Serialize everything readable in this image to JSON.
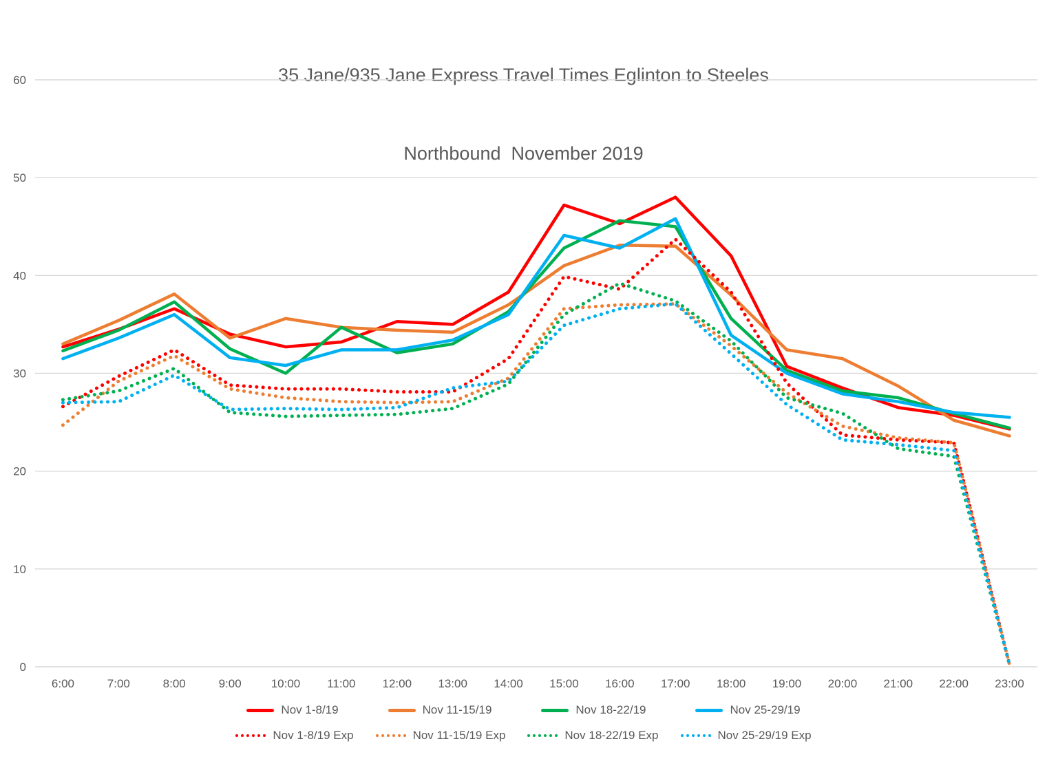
{
  "title": {
    "line1": "35 Jane/935 Jane Express Travel Times Eglinton to Steeles",
    "line2": "Northbound  November 2019"
  },
  "colors": {
    "red": "#FF0000",
    "orange": "#ED7D31",
    "green": "#00B050",
    "blue": "#00B0F0",
    "grid": "#D9D9D9",
    "text": "#595959"
  },
  "chart_data": {
    "type": "line",
    "title": "35 Jane/935 Jane Express Travel Times Eglinton to Steeles Northbound November 2019",
    "xlabel": "",
    "ylabel": "",
    "ylim": [
      0,
      60
    ],
    "y_ticks": [
      0,
      10,
      20,
      30,
      40,
      50,
      60
    ],
    "grid": "horizontal",
    "legend_position": "bottom",
    "categories": [
      "6:00",
      "7:00",
      "8:00",
      "9:00",
      "10:00",
      "11:00",
      "12:00",
      "13:00",
      "14:00",
      "15:00",
      "16:00",
      "17:00",
      "18:00",
      "19:00",
      "20:00",
      "21:00",
      "22:00",
      "23:00"
    ],
    "series": [
      {
        "name": "Nov 1-8/19",
        "color": "#FF0000",
        "dash": "solid",
        "values": [
          32.7,
          34.5,
          36.6,
          34.0,
          32.7,
          33.2,
          35.3,
          35.0,
          38.3,
          47.2,
          45.3,
          48.0,
          42.0,
          30.7,
          28.5,
          26.5,
          25.7,
          24.3
        ]
      },
      {
        "name": "Nov 11-15/19",
        "color": "#ED7D31",
        "dash": "solid",
        "values": [
          33.0,
          35.4,
          38.1,
          33.6,
          35.6,
          34.7,
          34.4,
          34.2,
          37.0,
          41.0,
          43.1,
          43.0,
          38.0,
          32.4,
          31.5,
          28.7,
          25.2,
          23.6
        ]
      },
      {
        "name": "Nov 18-22/19",
        "color": "#00B050",
        "dash": "solid",
        "values": [
          32.3,
          34.4,
          37.3,
          32.5,
          30.0,
          34.7,
          32.1,
          33.0,
          36.3,
          42.8,
          45.6,
          45.0,
          35.6,
          30.3,
          28.2,
          27.5,
          25.9,
          24.4
        ]
      },
      {
        "name": "Nov 25-29/19",
        "color": "#00B0F0",
        "dash": "solid",
        "values": [
          31.5,
          33.6,
          36.0,
          31.6,
          30.8,
          32.4,
          32.4,
          33.4,
          36.0,
          44.1,
          42.8,
          45.8,
          33.9,
          30.0,
          27.9,
          27.1,
          26.0,
          25.5
        ]
      },
      {
        "name": "Nov 1-8/19 Exp",
        "color": "#FF0000",
        "dash": "dotted",
        "values": [
          26.6,
          29.7,
          32.4,
          28.8,
          28.4,
          28.4,
          28.1,
          28.1,
          31.5,
          39.9,
          38.6,
          43.7,
          38.3,
          29.0,
          23.7,
          23.2,
          22.9,
          0.2
        ]
      },
      {
        "name": "Nov 11-15/19 Exp",
        "color": "#ED7D31",
        "dash": "dotted",
        "values": [
          24.7,
          29.2,
          31.8,
          28.4,
          27.5,
          27.1,
          27.0,
          27.1,
          29.5,
          36.6,
          37.0,
          37.1,
          32.8,
          28.0,
          24.6,
          23.4,
          22.9,
          0.2
        ]
      },
      {
        "name": "Nov 18-22/19 Exp",
        "color": "#00B050",
        "dash": "dotted",
        "values": [
          27.3,
          28.2,
          30.5,
          26.0,
          25.6,
          25.7,
          25.8,
          26.4,
          28.9,
          36.0,
          39.2,
          37.4,
          33.3,
          27.5,
          25.9,
          22.3,
          21.5,
          0.2
        ]
      },
      {
        "name": "Nov 25-29/19 Exp",
        "color": "#00B0F0",
        "dash": "dotted",
        "values": [
          27.0,
          27.1,
          29.8,
          26.3,
          26.4,
          26.3,
          26.5,
          28.5,
          29.2,
          34.9,
          36.6,
          37.1,
          32.0,
          26.8,
          23.2,
          22.7,
          22.1,
          0.2
        ]
      }
    ]
  }
}
